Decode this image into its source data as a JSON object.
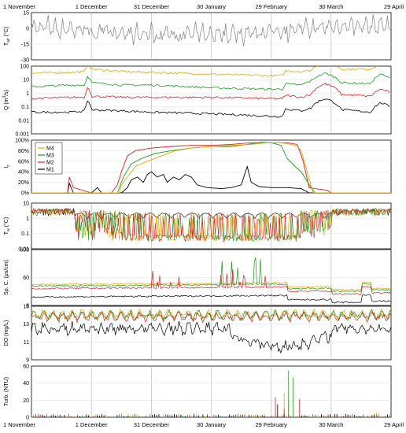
{
  "chart_data": {
    "type": "line",
    "x_axis": {
      "ticks": [
        {
          "date": "1 November",
          "day": 0
        },
        {
          "date": "1 December",
          "day": 30
        },
        {
          "date": "31 December",
          "day": 60
        },
        {
          "date": "30 January",
          "day": 90
        },
        {
          "date": "29 February",
          "day": 120
        },
        {
          "date": "30 March",
          "day": 150
        },
        {
          "date": "29 April",
          "day": 180
        }
      ],
      "xlim": [
        0,
        180
      ],
      "grid": true
    },
    "series_colors": {
      "M4": "#e3a600",
      "M3": "#1a9a1a",
      "M2": "#d62020",
      "M1": "#000000",
      "air": "#808080"
    },
    "legend": {
      "placement": "top-left (panel 3)",
      "entries": [
        "M4",
        "M3",
        "M2",
        "M1"
      ]
    },
    "panels": [
      {
        "id": "air",
        "ylabel": "T_air (°C)",
        "ylabel_main": "T",
        "ylabel_sub": "air",
        "ylabel_unit": " (°C)",
        "scale": "linear",
        "ylim": [
          -30,
          15
        ],
        "ticks": [
          "15",
          "0",
          "-15",
          "-30"
        ]
      },
      {
        "id": "discharge",
        "ylabel": "Q (m³/s)",
        "ylabel_main": "Q (m",
        "ylabel_sup": "3",
        "ylabel_unit": "/s)",
        "scale": "log",
        "ylim": [
          0.001,
          100
        ],
        "ticks": [
          "100",
          "10",
          "1",
          "0.1",
          "0.01",
          "0.001"
        ]
      },
      {
        "id": "ice",
        "ylabel": "I_c",
        "ylabel_main": "I",
        "ylabel_sub": "c",
        "scale": "linear",
        "ylim": [
          0,
          100
        ],
        "ticks": [
          "100%",
          "80%",
          "60%",
          "40%",
          "20%",
          "0%"
        ]
      },
      {
        "id": "water_temp",
        "ylabel": "T_w (°C)",
        "ylabel_main": "T",
        "ylabel_sub": "w",
        "ylabel_unit": " (°C)",
        "scale": "log",
        "ylim": [
          0.01,
          10
        ],
        "ticks": [
          "10",
          "1",
          "0.1",
          "0.01"
        ]
      },
      {
        "id": "conductivity",
        "ylabel": "Sp. C. (μs/cm)",
        "ylabel_main": "Sp. C. (μs/cm)",
        "scale": "log",
        "ylim": [
          6,
          600
        ],
        "ticks": [
          "600",
          "60",
          "6"
        ]
      },
      {
        "id": "do",
        "ylabel": "DO (mg/L)",
        "ylabel_main": "DO (mg/L)",
        "scale": "linear",
        "ylim": [
          9,
          15
        ],
        "ticks": [
          "15",
          "13",
          "11",
          "9"
        ]
      },
      {
        "id": "turbidity",
        "ylabel": "Turb. (NTU)",
        "ylabel_main": "Turb. (NTU)",
        "scale": "linear",
        "ylim": [
          0,
          60
        ],
        "ticks": [
          "60",
          "40",
          "20",
          "0"
        ]
      }
    ],
    "series_keypoints": {
      "ice": {
        "M4": [
          [
            0,
            0
          ],
          [
            22,
            0
          ],
          [
            30,
            0
          ],
          [
            40,
            0
          ],
          [
            44,
            0
          ],
          [
            45,
            15
          ],
          [
            48,
            30
          ],
          [
            52,
            50
          ],
          [
            58,
            60
          ],
          [
            65,
            70
          ],
          [
            72,
            80
          ],
          [
            80,
            85
          ],
          [
            90,
            88
          ],
          [
            100,
            90
          ],
          [
            110,
            92
          ],
          [
            118,
            95
          ],
          [
            125,
            95
          ],
          [
            130,
            92
          ],
          [
            133,
            88
          ],
          [
            135,
            80
          ],
          [
            138,
            40
          ],
          [
            141,
            0
          ],
          [
            180,
            0
          ]
        ],
        "M3": [
          [
            0,
            0
          ],
          [
            22,
            0
          ],
          [
            40,
            0
          ],
          [
            43,
            0
          ],
          [
            46,
            30
          ],
          [
            50,
            55
          ],
          [
            55,
            65
          ],
          [
            62,
            75
          ],
          [
            70,
            80
          ],
          [
            80,
            85
          ],
          [
            90,
            88
          ],
          [
            100,
            88
          ],
          [
            108,
            92
          ],
          [
            115,
            96
          ],
          [
            120,
            95
          ],
          [
            125,
            90
          ],
          [
            128,
            65
          ],
          [
            132,
            50
          ],
          [
            135,
            40
          ],
          [
            140,
            10
          ],
          [
            142,
            0
          ],
          [
            180,
            0
          ]
        ],
        "M2": [
          [
            0,
            0
          ],
          [
            18,
            0
          ],
          [
            19,
            30
          ],
          [
            21,
            10
          ],
          [
            30,
            0
          ],
          [
            40,
            0
          ],
          [
            43,
            15
          ],
          [
            45,
            40
          ],
          [
            48,
            70
          ],
          [
            52,
            80
          ],
          [
            60,
            85
          ],
          [
            70,
            88
          ],
          [
            80,
            90
          ],
          [
            90,
            90
          ],
          [
            100,
            92
          ],
          [
            110,
            95
          ],
          [
            120,
            95
          ],
          [
            128,
            95
          ],
          [
            133,
            92
          ],
          [
            136,
            60
          ],
          [
            139,
            10
          ],
          [
            142,
            8
          ],
          [
            148,
            5
          ],
          [
            150,
            0
          ],
          [
            180,
            0
          ]
        ],
        "M1": [
          [
            0,
            0
          ],
          [
            18,
            0
          ],
          [
            19,
            18
          ],
          [
            21,
            0
          ],
          [
            30,
            0
          ],
          [
            33,
            10
          ],
          [
            35,
            0
          ],
          [
            45,
            0
          ],
          [
            48,
            10
          ],
          [
            50,
            25
          ],
          [
            53,
            30
          ],
          [
            56,
            20
          ],
          [
            58,
            35
          ],
          [
            60,
            40
          ],
          [
            63,
            30
          ],
          [
            66,
            35
          ],
          [
            68,
            20
          ],
          [
            71,
            30
          ],
          [
            74,
            25
          ],
          [
            77,
            35
          ],
          [
            80,
            30
          ],
          [
            83,
            15
          ],
          [
            88,
            10
          ],
          [
            95,
            8
          ],
          [
            100,
            10
          ],
          [
            105,
            15
          ],
          [
            108,
            50
          ],
          [
            110,
            20
          ],
          [
            114,
            12
          ],
          [
            120,
            10
          ],
          [
            128,
            10
          ],
          [
            135,
            8
          ],
          [
            139,
            0
          ],
          [
            142,
            0
          ],
          [
            180,
            0
          ]
        ]
      },
      "discharge": {
        "M4": [
          [
            0,
            30
          ],
          [
            20,
            35
          ],
          [
            27,
            40
          ],
          [
            28,
            150
          ],
          [
            30,
            60
          ],
          [
            45,
            40
          ],
          [
            60,
            35
          ],
          [
            90,
            25
          ],
          [
            120,
            20
          ],
          [
            126,
            20
          ],
          [
            127,
            45
          ],
          [
            135,
            40
          ],
          [
            140,
            50
          ],
          [
            147,
            200
          ],
          [
            155,
            60
          ],
          [
            170,
            60
          ],
          [
            175,
            150
          ],
          [
            180,
            100
          ]
        ],
        "M3": [
          [
            0,
            3
          ],
          [
            20,
            4
          ],
          [
            27,
            4
          ],
          [
            28,
            20
          ],
          [
            30,
            6
          ],
          [
            45,
            4
          ],
          [
            60,
            4
          ],
          [
            90,
            2.5
          ],
          [
            120,
            2
          ],
          [
            126,
            2
          ],
          [
            127,
            5
          ],
          [
            135,
            4
          ],
          [
            140,
            8
          ],
          [
            147,
            30
          ],
          [
            155,
            6
          ],
          [
            170,
            5
          ],
          [
            175,
            25
          ],
          [
            180,
            10
          ]
        ],
        "M2": [
          [
            0,
            0.4
          ],
          [
            20,
            0.5
          ],
          [
            27,
            0.5
          ],
          [
            28,
            3
          ],
          [
            30,
            0.6
          ],
          [
            45,
            0.5
          ],
          [
            60,
            0.5
          ],
          [
            90,
            0.5
          ],
          [
            120,
            0.4
          ],
          [
            126,
            0.4
          ],
          [
            127,
            0.7
          ],
          [
            135,
            0.5
          ],
          [
            140,
            0.8
          ],
          [
            147,
            5
          ],
          [
            155,
            0.8
          ],
          [
            170,
            0.6
          ],
          [
            175,
            2
          ],
          [
            180,
            1
          ]
        ],
        "M1": [
          [
            0,
            0.04
          ],
          [
            20,
            0.04
          ],
          [
            27,
            0.05
          ],
          [
            28,
            0.3
          ],
          [
            30,
            0.06
          ],
          [
            45,
            0.05
          ],
          [
            60,
            0.04
          ],
          [
            90,
            0.03
          ],
          [
            120,
            0.02
          ],
          [
            126,
            0.02
          ],
          [
            127,
            0.07
          ],
          [
            135,
            0.05
          ],
          [
            140,
            0.08
          ],
          [
            147,
            0.4
          ],
          [
            155,
            0.06
          ],
          [
            170,
            0.04
          ],
          [
            175,
            0.2
          ],
          [
            180,
            0.08
          ]
        ]
      }
    }
  }
}
